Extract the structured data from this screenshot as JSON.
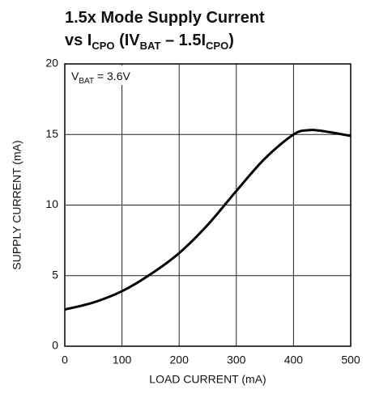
{
  "chart_data": {
    "type": "line",
    "title": [
      "1.5x Mode Supply Current",
      "vs I",
      "CPO",
      " (IV",
      "BAT",
      " – 1.5I",
      "CPO",
      ")"
    ],
    "annotation": [
      "V",
      "BAT",
      " = 3.6V"
    ],
    "x_label": "LOAD CURRENT (mA)",
    "y_label": "SUPPLY CURRENT (mA)",
    "x": [
      0,
      50,
      100,
      150,
      200,
      250,
      300,
      350,
      400,
      425,
      450,
      500
    ],
    "y": [
      2.6,
      3.1,
      3.9,
      5.1,
      6.6,
      8.6,
      11.0,
      13.3,
      15.0,
      15.3,
      15.25,
      14.9
    ],
    "color": "#000000",
    "xlim": [
      0,
      500
    ],
    "xticks": [
      0,
      100,
      200,
      300,
      400,
      500
    ],
    "ylim": [
      0,
      20
    ],
    "yticks": [
      0,
      5,
      10,
      15,
      20
    ],
    "grid": true
  }
}
